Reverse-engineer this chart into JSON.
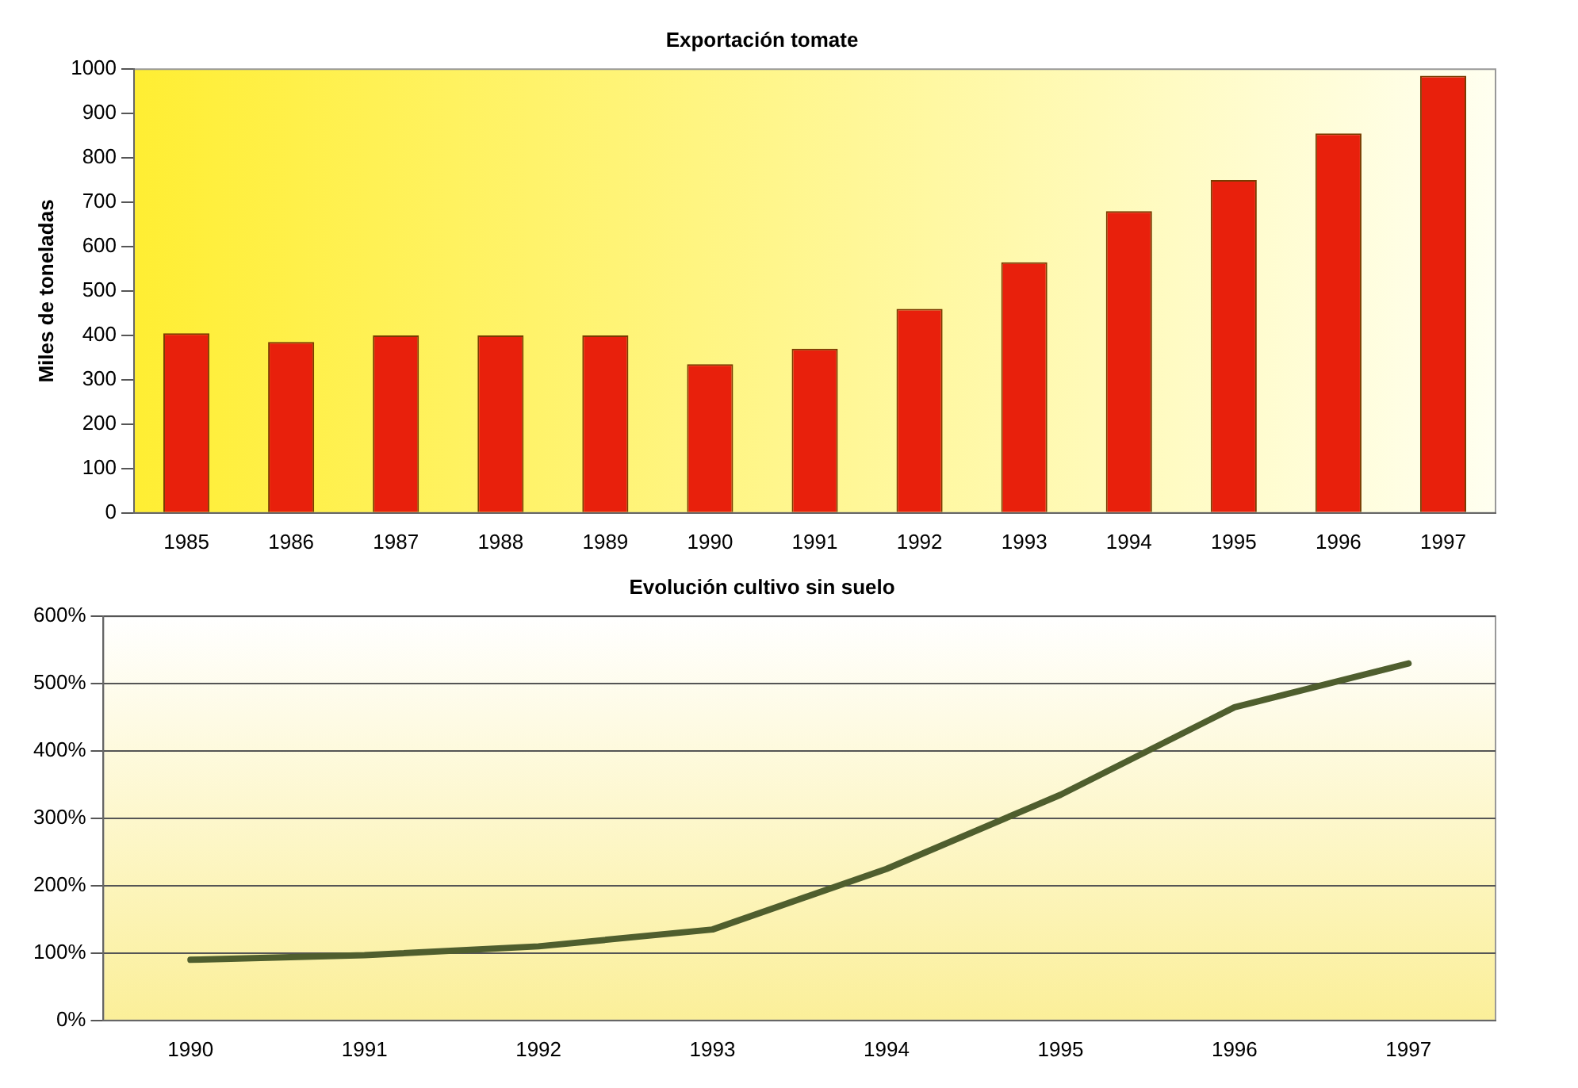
{
  "chart_data": [
    {
      "type": "bar",
      "title": "Exportación tomate",
      "ylabel": "Miles de toneladas",
      "categories": [
        "1985",
        "1986",
        "1987",
        "1988",
        "1989",
        "1990",
        "1991",
        "1992",
        "1993",
        "1994",
        "1995",
        "1996",
        "1997"
      ],
      "values": [
        405,
        385,
        400,
        400,
        400,
        335,
        370,
        460,
        565,
        680,
        750,
        855,
        985
      ],
      "color": "#e8200c",
      "ylim": [
        0,
        1000
      ],
      "yticks": [
        0,
        100,
        200,
        300,
        400,
        500,
        600,
        700,
        800,
        900,
        1000
      ],
      "grid": false,
      "legend": false
    },
    {
      "type": "line",
      "title": "Evolución cultivo sin suelo",
      "categories": [
        "1990",
        "1991",
        "1992",
        "1993",
        "1994",
        "1995",
        "1996",
        "1997"
      ],
      "values": [
        90,
        97,
        110,
        135,
        225,
        335,
        465,
        530
      ],
      "color": "#4f5e2e",
      "ylim": [
        0,
        600
      ],
      "yticks": [
        {
          "value": 0,
          "label": "0%"
        },
        {
          "value": 100,
          "label": "100%"
        },
        {
          "value": 200,
          "label": "200%"
        },
        {
          "value": 300,
          "label": "300%"
        },
        {
          "value": 400,
          "label": "400%"
        },
        {
          "value": 500,
          "label": "500%"
        },
        {
          "value": 600,
          "label": "600%"
        }
      ],
      "grid": "y",
      "legend": false,
      "marker": "none",
      "line_style": "solid"
    }
  ]
}
